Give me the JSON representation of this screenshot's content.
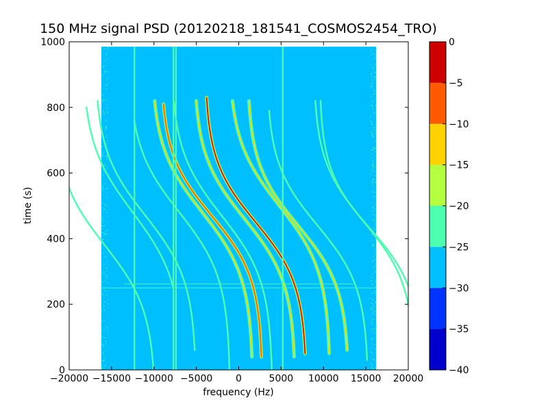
{
  "chart_data": {
    "type": "heatmap",
    "title": "150 MHz signal PSD (20120218_181541_COSMOS2454_TRO)",
    "xlabel": "frequency (Hz)",
    "ylabel": "time (s)",
    "xlim": [
      -20000,
      20000
    ],
    "ylim": [
      0,
      1000
    ],
    "x_ticks": [
      -20000,
      -15000,
      -10000,
      -5000,
      0,
      5000,
      10000,
      15000,
      20000
    ],
    "x_tick_labels": [
      "−20000",
      "−15000",
      "−10000",
      "−5000",
      "0",
      "5000",
      "10000",
      "15000",
      "20000"
    ],
    "y_ticks": [
      0,
      200,
      400,
      600,
      800,
      1000
    ],
    "y_tick_labels": [
      "0",
      "200",
      "400",
      "600",
      "800",
      "1000"
    ],
    "data_extent": {
      "x": [
        -16200,
        16200
      ],
      "y": [
        0,
        985
      ]
    },
    "background_level": -27.5,
    "colorbar": {
      "levels": [
        -40,
        -35,
        -30,
        -25,
        -20,
        -15,
        -10,
        -5,
        0
      ],
      "tick_labels": [
        "−40",
        "−35",
        "−30",
        "−25",
        "−20",
        "−15",
        "−10",
        "−5",
        "0"
      ],
      "colors": [
        "#0000cc",
        "#0033ff",
        "#00bfff",
        "#4dffb0",
        "#b3ff40",
        "#ffd200",
        "#ff5a00",
        "#cc0000"
      ]
    },
    "vertical_lines": [
      {
        "x": -12300,
        "level": -22
      },
      {
        "x": -7700,
        "level": -22
      },
      {
        "x": -7400,
        "level": -22
      },
      {
        "x": 5200,
        "level": -22
      }
    ],
    "horizontal_lines": [
      {
        "y": 250,
        "x": [
          -16200,
          16200
        ],
        "level": -25
      },
      {
        "y": 262,
        "x": [
          -13500,
          13500
        ],
        "level": -25
      }
    ],
    "tracks": [
      {
        "name": "",
        "level": -22,
        "x0": -2000,
        "delta_x": 12000,
        "t_mid": 470,
        "slope_width": 200,
        "t_start": 0,
        "t_end": 820
      },
      {
        "name": "",
        "level": -2,
        "x0": 2000,
        "delta_x": 12000,
        "t_mid": 450,
        "slope_width": 190,
        "t_start": 50,
        "t_end": 830
      },
      {
        "name": "",
        "level": -12,
        "x0": 700,
        "delta_x": 12000,
        "t_mid": 460,
        "slope_width": 195,
        "t_start": 40,
        "t_end": 820
      },
      {
        "name": "",
        "level": -12,
        "x0": -4300,
        "delta_x": 12000,
        "t_mid": 480,
        "slope_width": 200,
        "t_start": 40,
        "t_end": 820
      },
      {
        "name": "",
        "level": -8,
        "x0": -3200,
        "delta_x": 12000,
        "t_mid": 470,
        "slope_width": 190,
        "t_start": 40,
        "t_end": 810
      },
      {
        "name": "",
        "level": -12,
        "x0": 4800,
        "delta_x": 12000,
        "t_mid": 500,
        "slope_width": 200,
        "t_start": 50,
        "t_end": 820
      },
      {
        "name": "",
        "level": -12,
        "x0": 7000,
        "delta_x": 12000,
        "t_mid": 440,
        "slope_width": 190,
        "t_start": 60,
        "t_end": 820
      },
      {
        "name": "",
        "level": -22,
        "x0": 9300,
        "delta_x": 12000,
        "t_mid": 440,
        "slope_width": 190,
        "t_start": 30,
        "t_end": 790
      },
      {
        "name": "",
        "level": -22,
        "x0": -11000,
        "delta_x": 12000,
        "t_mid": 470,
        "slope_width": 200,
        "t_start": 60,
        "t_end": 820
      },
      {
        "name": "",
        "level": -22,
        "x0": -7000,
        "delta_x": 12000,
        "t_mid": 480,
        "slope_width": 200,
        "t_start": 0,
        "t_end": 760
      },
      {
        "name": "",
        "level": -22,
        "x0": -12500,
        "delta_x": 12000,
        "t_mid": 480,
        "slope_width": 210,
        "t_start": 250,
        "t_end": 800
      },
      {
        "name": "",
        "level": -22,
        "x0": 15500,
        "delta_x": 12000,
        "t_mid": 430,
        "slope_width": 180,
        "t_start": 200,
        "t_end": 820
      },
      {
        "name": "",
        "level": -22,
        "x0": 14800,
        "delta_x": 12000,
        "t_mid": 450,
        "slope_width": 190,
        "t_start": 60,
        "t_end": 820
      },
      {
        "name": "",
        "level": -22,
        "x0": -15800,
        "delta_x": 12000,
        "t_mid": 380,
        "slope_width": 200,
        "t_start": 0,
        "t_end": 820
      }
    ]
  }
}
